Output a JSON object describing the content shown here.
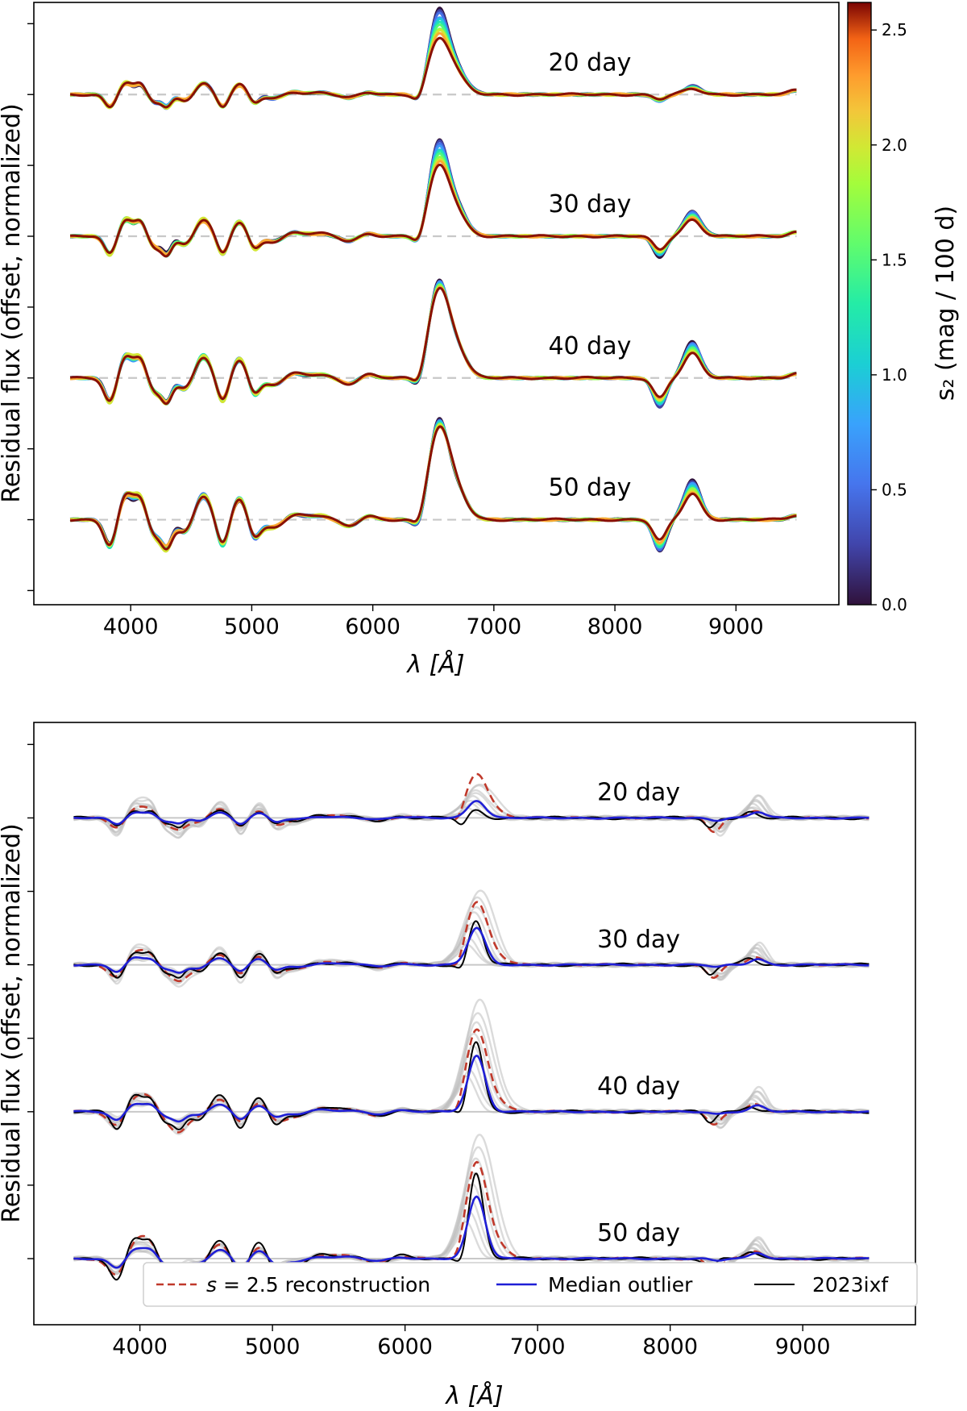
{
  "chart_data": [
    {
      "panel": "top",
      "type": "line",
      "xlabel": "λ [Å]",
      "ylabel": "Residual flux (offset, normalized)",
      "xlim": [
        3200,
        9850
      ],
      "ylim": [
        -0.6,
        3.65
      ],
      "xticks": [
        4000,
        5000,
        6000,
        7000,
        8000,
        9000
      ],
      "xtick_labels": [
        "4000",
        "5000",
        "6000",
        "7000",
        "8000",
        "9000"
      ],
      "epochs": [
        {
          "label": "20 day",
          "offset": 3.0,
          "halpha": 0.55,
          "ca": 0.06,
          "blue": 0.09
        },
        {
          "label": "30 day",
          "offset": 2.0,
          "halpha": 0.62,
          "ca": 0.18,
          "blue": 0.13
        },
        {
          "label": "40 day",
          "offset": 1.0,
          "halpha": 0.62,
          "ca": 0.26,
          "blue": 0.17
        },
        {
          "label": "50 day",
          "offset": 0.0,
          "halpha": 0.64,
          "ca": 0.28,
          "blue": 0.19
        }
      ],
      "s2_values": [
        0.0,
        0.25,
        0.5,
        0.75,
        1.0,
        1.25,
        1.5,
        1.75,
        2.0,
        2.25,
        2.6
      ],
      "colorbar": {
        "label": "s₂ (mag / 100 d)",
        "range": [
          0.0,
          2.62
        ],
        "ticks": [
          0.0,
          0.5,
          1.0,
          1.5,
          2.0,
          2.5
        ],
        "tick_labels": [
          "0.0",
          "0.5",
          "1.0",
          "1.5",
          "2.0",
          "2.5"
        ],
        "colormap": "turbo"
      }
    },
    {
      "panel": "bottom",
      "type": "line",
      "xlabel": "λ [Å]",
      "ylabel": "Residual flux (offset, normalized)",
      "xlim": [
        3200,
        9850
      ],
      "ylim": [
        -0.45,
        3.65
      ],
      "xticks": [
        4000,
        5000,
        6000,
        7000,
        8000,
        9000
      ],
      "xtick_labels": [
        "4000",
        "5000",
        "6000",
        "7000",
        "8000",
        "9000"
      ],
      "epochs": [
        {
          "label": "20 day",
          "offset": 3.0,
          "recon": 0.3,
          "median": 0.12,
          "obj": 0.05
        },
        {
          "label": "30 day",
          "offset": 2.0,
          "recon": 0.42,
          "median": 0.25,
          "obj": 0.3
        },
        {
          "label": "40 day",
          "offset": 1.0,
          "recon": 0.55,
          "median": 0.38,
          "obj": 0.48
        },
        {
          "label": "50 day",
          "offset": 0.0,
          "recon": 0.65,
          "median": 0.42,
          "obj": 0.58
        }
      ],
      "series": [
        {
          "name": "s = 2.5 reconstruction",
          "color": "#c0392b",
          "style": "dashed"
        },
        {
          "name": "Median outlier",
          "color": "#1f1fd6",
          "style": "solid"
        },
        {
          "name": "2023ixf",
          "color": "#000000",
          "style": "solid"
        }
      ],
      "legend": {
        "placement": "lower-center",
        "entries": [
          "s = 2.5 reconstruction",
          "Median outlier",
          "2023ixf"
        ],
        "recon_prefix": "s",
        "recon_suffix": " = 2.5 reconstruction",
        "median_label": "Median outlier",
        "obj_label": "2023ixf"
      },
      "background_color": "#bdbdbd"
    }
  ]
}
